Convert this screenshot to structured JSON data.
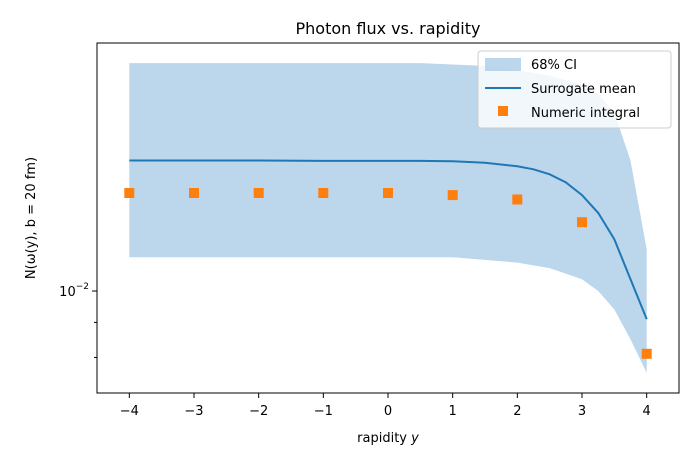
{
  "chart_data": {
    "type": "line",
    "title": "Photon flux vs. rapidity",
    "xlabel": "rapidity",
    "xlabel_var": "y",
    "ylabel": "N(ω(y), b = 20 fm)",
    "yscale": "log",
    "xlim": [
      -4.5,
      4.5
    ],
    "ylim": [
      0.0071,
      0.023
    ],
    "x_ticks": [
      -4,
      -3,
      -2,
      -1,
      0,
      1,
      2,
      3,
      4
    ],
    "x_tick_labels": [
      "−4",
      "−3",
      "−2",
      "−1",
      "0",
      "1",
      "2",
      "3",
      "4"
    ],
    "y_major_ticks": [
      0.01
    ],
    "y_major_tick_labels": [
      {
        "base": "10",
        "exp": "−2"
      }
    ],
    "y_minor_ticks": [
      0.008,
      0.009
    ],
    "legend_position": "top-right",
    "series": [
      {
        "name": "68% CI",
        "kind": "band",
        "color": "#a6c8e6",
        "x": [
          -4,
          -3,
          -2,
          -1,
          0,
          0.5,
          1,
          1.5,
          2,
          2.5,
          3,
          3.25,
          3.5,
          3.75,
          4
        ],
        "lower": [
          0.0112,
          0.0112,
          0.0112,
          0.0112,
          0.0112,
          0.0112,
          0.0112,
          0.0111,
          0.011,
          0.0108,
          0.0104,
          0.01,
          0.0094,
          0.0085,
          0.0076
        ],
        "upper": [
          0.0215,
          0.0215,
          0.0215,
          0.0215,
          0.0215,
          0.0215,
          0.0214,
          0.0213,
          0.021,
          0.0206,
          0.02,
          0.0194,
          0.0182,
          0.0155,
          0.0115
        ]
      },
      {
        "name": "Surrogate mean",
        "kind": "line",
        "color": "#1f77b4",
        "x": [
          -4,
          -3,
          -2,
          -1,
          0,
          0.5,
          1,
          1.5,
          2,
          2.25,
          2.5,
          2.75,
          3,
          3.25,
          3.5,
          3.75,
          4
        ],
        "values": [
          0.0155,
          0.0155,
          0.0155,
          0.01548,
          0.01548,
          0.01548,
          0.01546,
          0.01538,
          0.0152,
          0.01505,
          0.0148,
          0.0144,
          0.0138,
          0.013,
          0.0119,
          0.0104,
          0.0091
        ]
      },
      {
        "name": "Numeric integral",
        "kind": "scatter",
        "marker": "square",
        "color": "#ff7f0e",
        "x": [
          -4,
          -3,
          -2,
          -1,
          0,
          1,
          2,
          3,
          4
        ],
        "values": [
          0.0139,
          0.0139,
          0.0139,
          0.0139,
          0.0139,
          0.0138,
          0.0136,
          0.0126,
          0.0081
        ]
      }
    ]
  }
}
